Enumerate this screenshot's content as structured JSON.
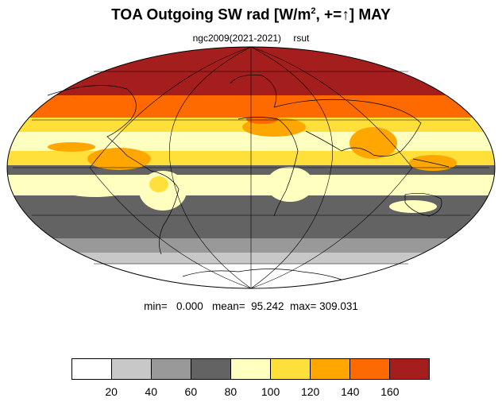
{
  "title": {
    "text_main": "TOA Outgoing SW rad [W/m",
    "superscript": "2",
    "text_tail": ", +=↑] MAY"
  },
  "subtitle": {
    "left": "ngc2009(2021-2021)",
    "right": "rsut"
  },
  "stats": {
    "line": "min=   0.000   mean=  95.242  max= 309.031"
  },
  "colorbar": {
    "colors": [
      "#ffffff",
      "#c8c8c8",
      "#999999",
      "#636363",
      "#ffffc0",
      "#ffe03a",
      "#ffa600",
      "#ff6a00",
      "#a51e1e"
    ],
    "labels": [
      "20",
      "40",
      "60",
      "80",
      "100",
      "120",
      "140",
      "160"
    ]
  },
  "map": {
    "projection": "mollweide",
    "field": "rsut",
    "month": "MAY"
  }
}
